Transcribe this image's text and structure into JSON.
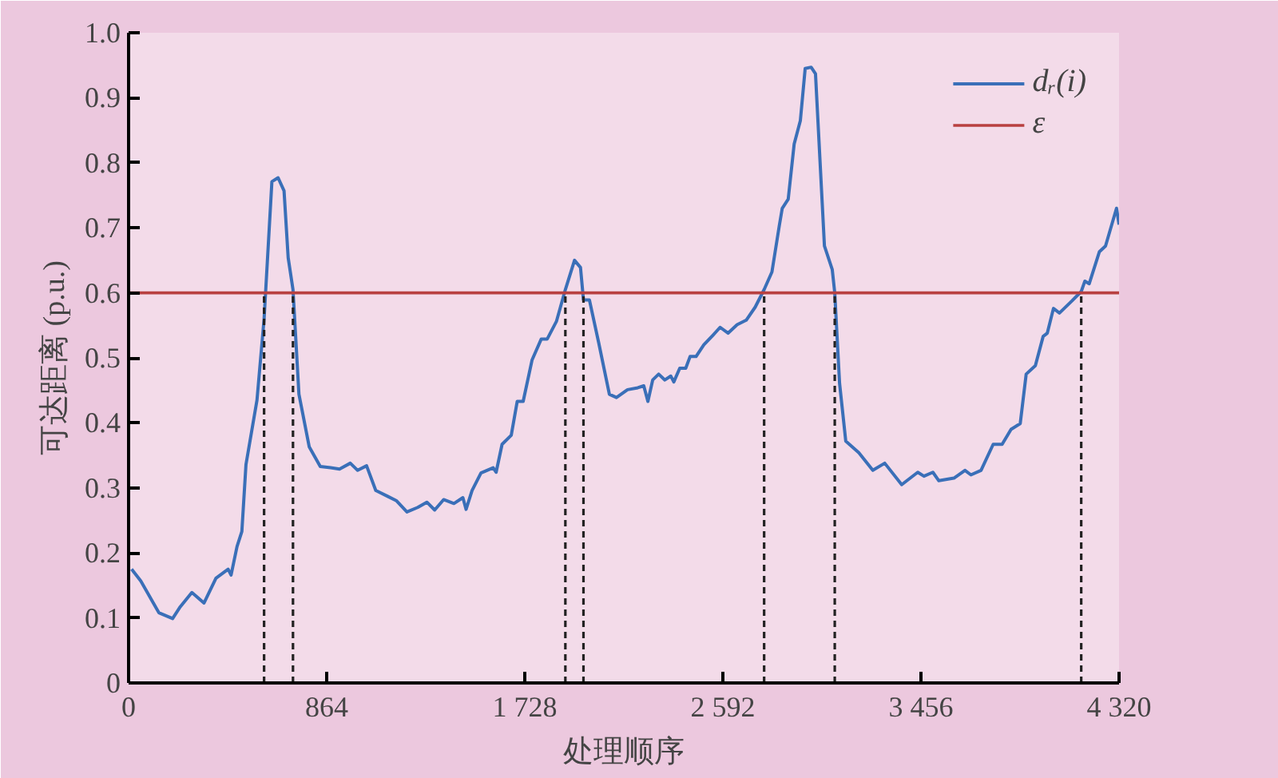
{
  "chart_data": {
    "type": "line",
    "xlabel": "处理顺序",
    "ylabel": "可达距离 (p.u.)",
    "xlim": [
      0,
      4320
    ],
    "ylim": [
      0,
      1.0
    ],
    "xticks": [
      0,
      {
        "value": 864,
        "label": "864"
      },
      {
        "value": 1728,
        "label": "1 728"
      },
      {
        "value": 2592,
        "label": "2 592"
      },
      {
        "value": 3456,
        "label": "3 456"
      },
      {
        "value": 4320,
        "label": "4 320"
      }
    ],
    "yticks": [
      0,
      0.1,
      0.2,
      0.3,
      0.4,
      0.5,
      0.6,
      0.7,
      0.8,
      0.9,
      {
        "value": 1.0,
        "label": "1.0"
      }
    ],
    "grid": false,
    "legend": "top right",
    "line_style": "solid",
    "marker": "none",
    "series": [
      {
        "name": "dᵣ(i)",
        "color": "#3a6fb8",
        "x": [
          13,
          53,
          132,
          192,
          223,
          276,
          329,
          381,
          434,
          447,
          473,
          494,
          512,
          560,
          591,
          625,
          652,
          678,
          696,
          717,
          743,
          788,
          836,
          881,
          920,
          967,
          999,
          1038,
          1078,
          1130,
          1169,
          1214,
          1261,
          1301,
          1335,
          1374,
          1419,
          1458,
          1472,
          1498,
          1537,
          1590,
          1603,
          1629,
          1669,
          1695,
          1721,
          1760,
          1800,
          1826,
          1866,
          1905,
          1945,
          1971,
          1984,
          2010,
          2050,
          2097,
          2128,
          2176,
          2221,
          2247,
          2265,
          2286,
          2312,
          2339,
          2365,
          2378,
          2404,
          2430,
          2449,
          2475,
          2509,
          2549,
          2580,
          2615,
          2654,
          2694,
          2733,
          2772,
          2806,
          2838,
          2851,
          2877,
          2903,
          2930,
          2951,
          2977,
          2996,
          3035,
          3069,
          3080,
          3101,
          3128,
          3185,
          3246,
          3298,
          3372,
          3442,
          3469,
          3508,
          3534,
          3600,
          3648,
          3674,
          3718,
          3771,
          3810,
          3849,
          3889,
          3915,
          3955,
          3989,
          4007,
          4034,
          4060,
          4113,
          4155,
          4171,
          4190,
          4234,
          4261,
          4309,
          4320
        ],
        "values": [
          0.175,
          0.157,
          0.108,
          0.099,
          0.116,
          0.139,
          0.123,
          0.161,
          0.175,
          0.166,
          0.21,
          0.233,
          0.336,
          0.435,
          0.56,
          0.771,
          0.777,
          0.757,
          0.654,
          0.605,
          0.444,
          0.363,
          0.333,
          0.331,
          0.329,
          0.338,
          0.327,
          0.334,
          0.296,
          0.287,
          0.28,
          0.263,
          0.27,
          0.278,
          0.266,
          0.282,
          0.276,
          0.285,
          0.267,
          0.296,
          0.323,
          0.331,
          0.324,
          0.367,
          0.381,
          0.433,
          0.433,
          0.497,
          0.529,
          0.529,
          0.556,
          0.605,
          0.65,
          0.639,
          0.589,
          0.589,
          0.524,
          0.444,
          0.439,
          0.451,
          0.454,
          0.457,
          0.433,
          0.466,
          0.475,
          0.466,
          0.472,
          0.463,
          0.484,
          0.484,
          0.502,
          0.502,
          0.52,
          0.535,
          0.547,
          0.538,
          0.551,
          0.558,
          0.578,
          0.605,
          0.632,
          0.703,
          0.73,
          0.744,
          0.829,
          0.865,
          0.945,
          0.947,
          0.937,
          0.672,
          0.636,
          0.6,
          0.461,
          0.372,
          0.354,
          0.327,
          0.338,
          0.305,
          0.324,
          0.318,
          0.324,
          0.311,
          0.315,
          0.327,
          0.32,
          0.327,
          0.367,
          0.367,
          0.39,
          0.399,
          0.475,
          0.488,
          0.533,
          0.538,
          0.576,
          0.569,
          0.587,
          0.602,
          0.618,
          0.614,
          0.663,
          0.672,
          0.73,
          0.705
        ]
      }
    ],
    "ref_lines": [
      {
        "axis": "y",
        "value": 0.6,
        "label": "ε",
        "color": "#b84040",
        "line_style": "solid"
      },
      {
        "axis": "x",
        "value": 591,
        "color": "#222222",
        "line_style": "dashed"
      },
      {
        "axis": "x",
        "value": 717,
        "color": "#222222",
        "line_style": "dashed"
      },
      {
        "axis": "x",
        "value": 1905,
        "color": "#222222",
        "line_style": "dashed"
      },
      {
        "axis": "x",
        "value": 1984,
        "color": "#222222",
        "line_style": "dashed"
      },
      {
        "axis": "x",
        "value": 2772,
        "color": "#222222",
        "line_style": "dashed"
      },
      {
        "axis": "x",
        "value": 3080,
        "color": "#222222",
        "line_style": "dashed"
      },
      {
        "axis": "x",
        "value": 4155,
        "color": "#222222",
        "line_style": "dashed"
      }
    ]
  }
}
